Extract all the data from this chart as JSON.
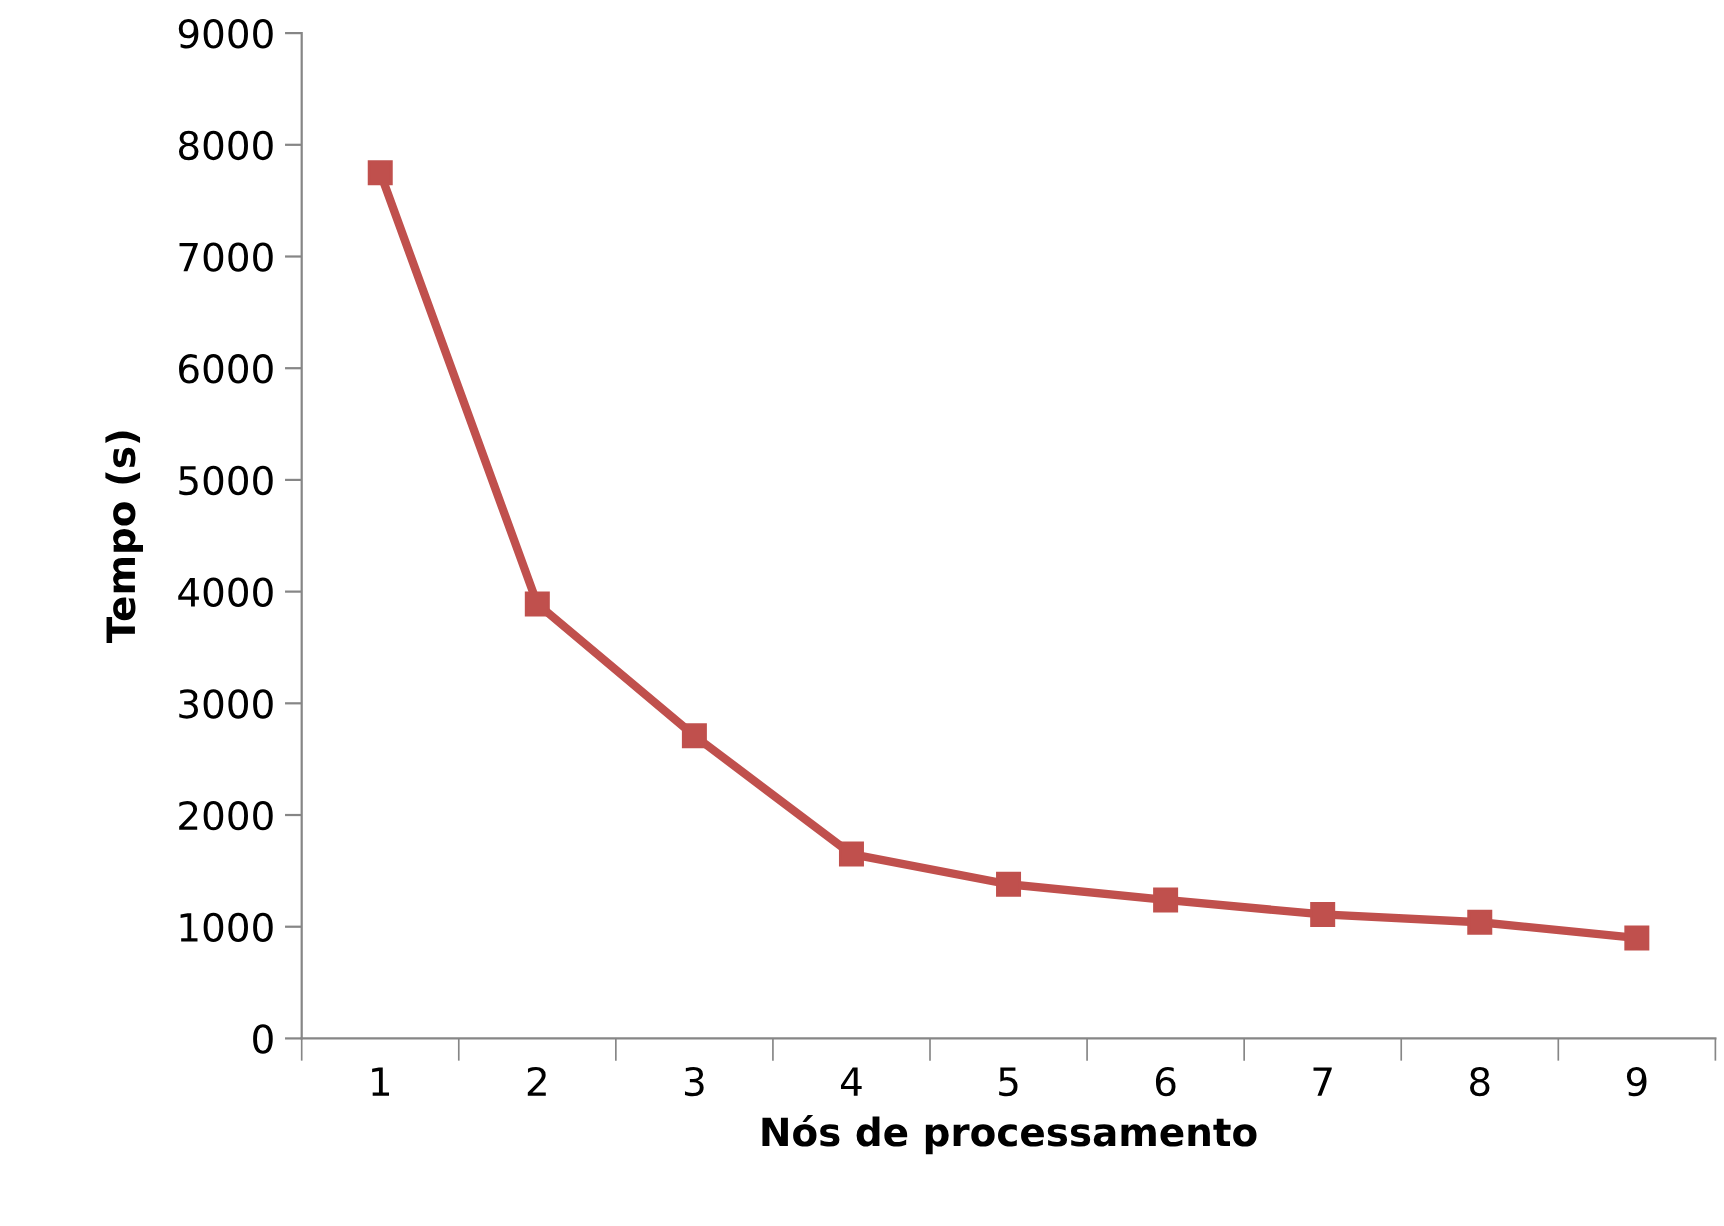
{
  "chart_data": {
    "type": "line",
    "xlabel": "Nós de processamento",
    "ylabel": "Tempo (s)",
    "categories": [
      "1",
      "2",
      "3",
      "4",
      "5",
      "6",
      "7",
      "8",
      "9"
    ],
    "series": [
      {
        "color": "#c0504d",
        "values": [
          7750,
          3890,
          2710,
          1650,
          1380,
          1240,
          1110,
          1040,
          900
        ]
      }
    ],
    "ylim": [
      0,
      9000
    ],
    "yticks": [
      0,
      1000,
      2000,
      3000,
      4000,
      5000,
      6000,
      7000,
      8000,
      9000
    ],
    "grid": false,
    "legend": false,
    "marker": "square",
    "line_style": "solid"
  }
}
